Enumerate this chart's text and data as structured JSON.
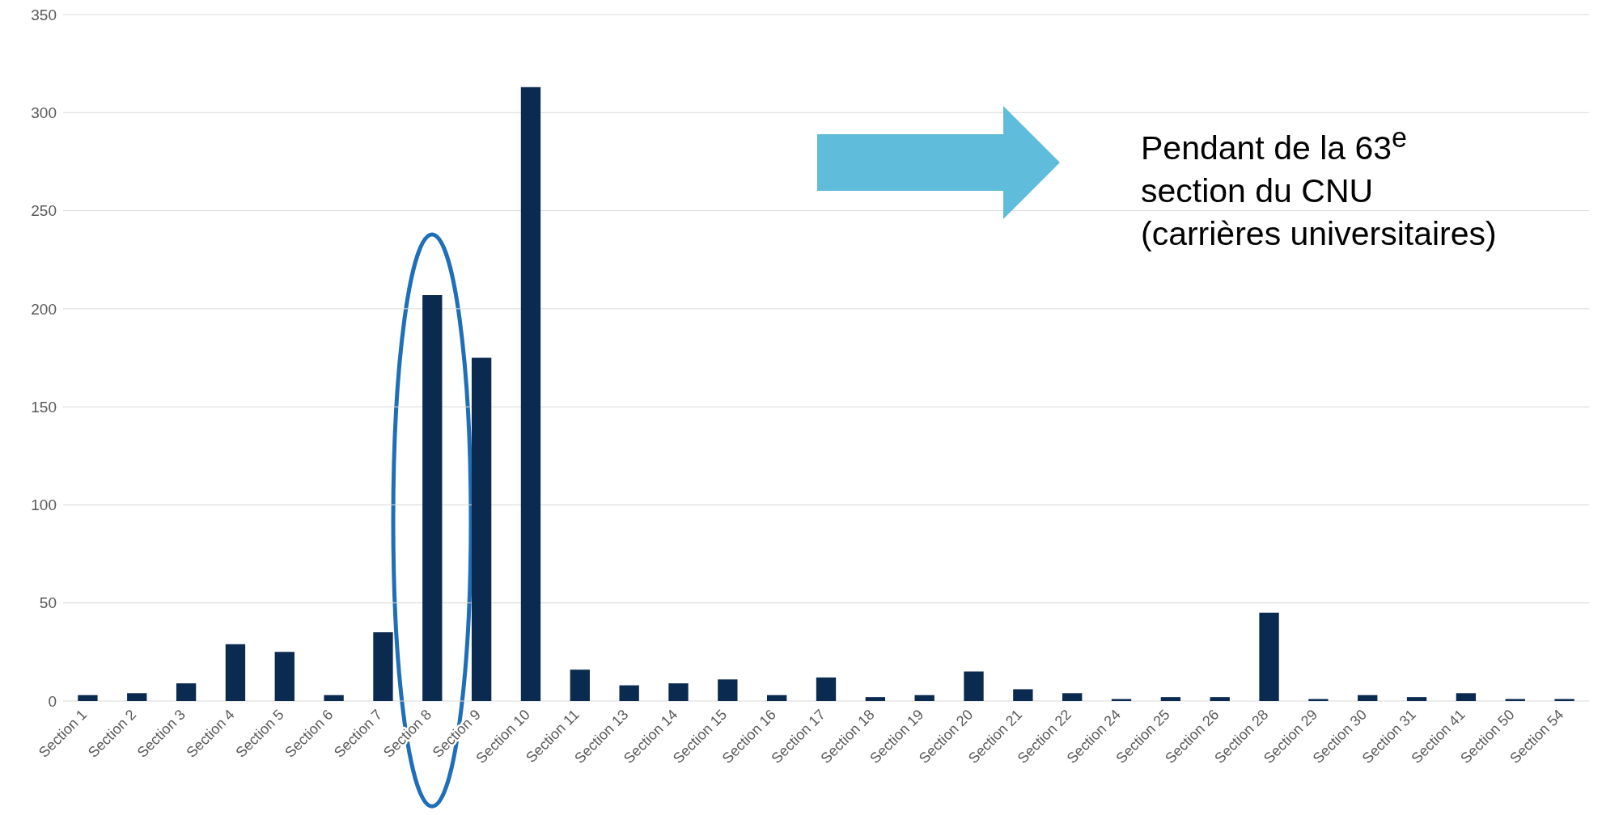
{
  "chart_data": {
    "type": "bar",
    "categories": [
      "Section 1",
      "Section 2",
      "Section 3",
      "Section 4",
      "Section 5",
      "Section 6",
      "Section 7",
      "Section 8",
      "Section 9",
      "Section 10",
      "Section 11",
      "Section 13",
      "Section 14",
      "Section 15",
      "Section 16",
      "Section 17",
      "Section 18",
      "Section 19",
      "Section 20",
      "Section 21",
      "Section 22",
      "Section 24",
      "Section 25",
      "Section 26",
      "Section 28",
      "Section 29",
      "Section 30",
      "Section 31",
      "Section 41",
      "Section 50",
      "Section 54"
    ],
    "values": [
      3,
      4,
      9,
      29,
      25,
      3,
      35,
      207,
      175,
      313,
      16,
      8,
      9,
      11,
      3,
      12,
      2,
      3,
      15,
      6,
      4,
      1,
      2,
      2,
      45,
      1,
      3,
      2,
      4,
      1,
      1
    ],
    "color": "#0b2a4f",
    "ylim": [
      0,
      350
    ],
    "yticks": [
      0,
      50,
      100,
      150,
      200,
      250,
      300,
      350
    ],
    "grid": "y",
    "annotations": [
      "Pendant de la 63$^{e}$ section du CNU (carrières universitaires)"
    ]
  }
}
